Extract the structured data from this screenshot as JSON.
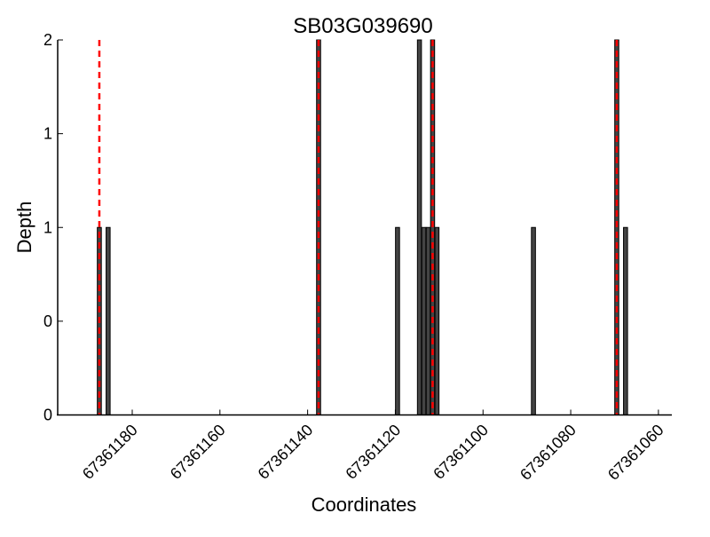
{
  "chart_data": {
    "type": "bar",
    "title": "SB03G039690",
    "xlabel": "Coordinates",
    "ylabel": "Depth",
    "xlim": [
      67361197,
      67361057
    ],
    "x_reversed": true,
    "ylim": [
      0,
      2
    ],
    "grid": false,
    "x_ticks": [
      {
        "value": 67361180,
        "label": "67361180"
      },
      {
        "value": 67361160,
        "label": "67361160"
      },
      {
        "value": 67361140,
        "label": "67361140"
      },
      {
        "value": 67361120,
        "label": "67361120"
      },
      {
        "value": 67361100,
        "label": "67361100"
      },
      {
        "value": 67361080,
        "label": "67361080"
      },
      {
        "value": 67361060,
        "label": "67361060"
      }
    ],
    "y_ticks": [
      {
        "value": 0,
        "label": "0"
      },
      {
        "value": 0.5,
        "label": "0"
      },
      {
        "value": 1,
        "label": "1"
      },
      {
        "value": 1.5,
        "label": "1"
      },
      {
        "value": 2,
        "label": "2"
      }
    ],
    "bars": [
      {
        "x": 67361187.5,
        "depth": 1
      },
      {
        "x": 67361185.5,
        "depth": 1
      },
      {
        "x": 67361137.5,
        "depth": 2
      },
      {
        "x": 67361119.5,
        "depth": 1
      },
      {
        "x": 67361114.5,
        "depth": 2
      },
      {
        "x": 67361113.5,
        "depth": 1
      },
      {
        "x": 67361112.5,
        "depth": 1
      },
      {
        "x": 67361111.5,
        "depth": 2
      },
      {
        "x": 67361110.5,
        "depth": 1
      },
      {
        "x": 67361088.5,
        "depth": 1
      },
      {
        "x": 67361069.5,
        "depth": 2
      },
      {
        "x": 67361067.5,
        "depth": 1
      }
    ],
    "bar_color": "#444444",
    "marker_lines": [
      67361187.5,
      67361137.5,
      67361111.5,
      67361069.5
    ],
    "marker_color": "#ff0000"
  }
}
